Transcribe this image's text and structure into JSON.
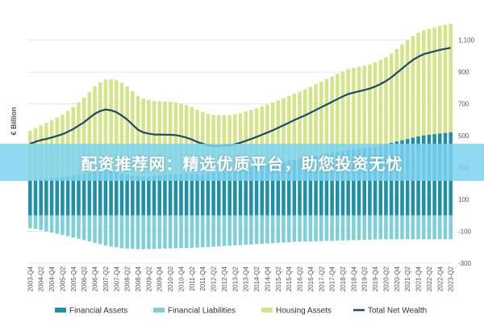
{
  "watermark": {
    "text": "配资推荐网：精选优质平台，助您投资无忧",
    "band_color": "#7dd3ee"
  },
  "colors": {
    "financial_assets": "#1f8fa6",
    "financial_liabilities": "#7fd0d6",
    "housing_assets": "#d4e48b",
    "total_net_wealth": "#1b4a6b",
    "grid": "#d9d9d9"
  },
  "chart_data": {
    "type": "bar",
    "ylabel": "€ Billion",
    "ylim": [
      -300,
      1200
    ],
    "yticks": [
      -300,
      -100,
      100,
      300,
      500,
      700,
      900,
      1100
    ],
    "ytick_labels": [
      "-300",
      "-100",
      "100",
      "300",
      "500",
      "700",
      "900",
      "1,100"
    ],
    "x_tick_labels": [
      "2003-Q4",
      "2004-Q2",
      "2004-Q4",
      "2005-Q2",
      "2005-Q4",
      "2006-Q2",
      "2006-Q4",
      "2007-Q2",
      "2007-Q4",
      "2008-Q2",
      "2008-Q4",
      "2009-Q2",
      "2009-Q4",
      "2010-Q2",
      "2010-Q4",
      "2011-Q2",
      "2011-Q4",
      "2012-Q2",
      "2012-Q4",
      "2013-Q2",
      "2013-Q4",
      "2014-Q2",
      "2014-Q4",
      "2015-Q2",
      "2015-Q4",
      "2016-Q2",
      "2016-Q4",
      "2017-Q2",
      "2017-Q4",
      "2018-Q2",
      "2018-Q4",
      "2019-Q2",
      "2019-Q4",
      "2020-Q2",
      "2020-Q4",
      "2021-Q2",
      "2021-Q4",
      "2022-Q2",
      "2022-Q4",
      "2023-Q2"
    ],
    "quarters": [
      "2003-Q4",
      "2004-Q1",
      "2004-Q2",
      "2004-Q3",
      "2004-Q4",
      "2005-Q1",
      "2005-Q2",
      "2005-Q3",
      "2005-Q4",
      "2006-Q1",
      "2006-Q2",
      "2006-Q3",
      "2006-Q4",
      "2007-Q1",
      "2007-Q2",
      "2007-Q3",
      "2007-Q4",
      "2008-Q1",
      "2008-Q2",
      "2008-Q3",
      "2008-Q4",
      "2009-Q1",
      "2009-Q2",
      "2009-Q3",
      "2009-Q4",
      "2010-Q1",
      "2010-Q2",
      "2010-Q3",
      "2010-Q4",
      "2011-Q1",
      "2011-Q2",
      "2011-Q3",
      "2011-Q4",
      "2012-Q1",
      "2012-Q2",
      "2012-Q3",
      "2012-Q4",
      "2013-Q1",
      "2013-Q2",
      "2013-Q3",
      "2013-Q4",
      "2014-Q1",
      "2014-Q2",
      "2014-Q3",
      "2014-Q4",
      "2015-Q1",
      "2015-Q2",
      "2015-Q3",
      "2015-Q4",
      "2016-Q1",
      "2016-Q2",
      "2016-Q3",
      "2016-Q4",
      "2017-Q1",
      "2017-Q2",
      "2017-Q3",
      "2017-Q4",
      "2018-Q1",
      "2018-Q2",
      "2018-Q3",
      "2018-Q4",
      "2019-Q1",
      "2019-Q2",
      "2019-Q3",
      "2019-Q4",
      "2020-Q1",
      "2020-Q2",
      "2020-Q3",
      "2020-Q4",
      "2021-Q1",
      "2021-Q2",
      "2021-Q3",
      "2021-Q4",
      "2022-Q1",
      "2022-Q2",
      "2022-Q3",
      "2022-Q4",
      "2023-Q1",
      "2023-Q2"
    ],
    "series": [
      {
        "name": "Financial Assets",
        "kind": "bar",
        "values": [
          220,
          222,
          225,
          228,
          232,
          236,
          240,
          245,
          250,
          255,
          260,
          265,
          270,
          275,
          278,
          275,
          270,
          262,
          255,
          250,
          245,
          243,
          245,
          248,
          252,
          255,
          258,
          260,
          262,
          262,
          260,
          258,
          260,
          263,
          266,
          270,
          275,
          280,
          285,
          290,
          296,
          302,
          308,
          314,
          320,
          326,
          332,
          338,
          344,
          350,
          356,
          362,
          368,
          374,
          380,
          386,
          392,
          398,
          404,
          410,
          414,
          418,
          422,
          426,
          432,
          440,
          448,
          456,
          464,
          472,
          480,
          488,
          496,
          502,
          506,
          510,
          514,
          518,
          522
        ]
      },
      {
        "name": "Financial Liabilities",
        "kind": "bar",
        "values": [
          -80,
          -85,
          -92,
          -100,
          -108,
          -115,
          -122,
          -130,
          -138,
          -146,
          -155,
          -163,
          -172,
          -180,
          -188,
          -195,
          -200,
          -205,
          -208,
          -210,
          -212,
          -212,
          -211,
          -210,
          -209,
          -208,
          -207,
          -206,
          -205,
          -204,
          -203,
          -202,
          -200,
          -198,
          -196,
          -194,
          -192,
          -190,
          -188,
          -186,
          -184,
          -182,
          -180,
          -178,
          -176,
          -174,
          -172,
          -170,
          -168,
          -166,
          -165,
          -164,
          -163,
          -162,
          -161,
          -160,
          -159,
          -158,
          -157,
          -156,
          -155,
          -154,
          -153,
          -152,
          -151,
          -150,
          -150,
          -150,
          -150,
          -150,
          -150,
          -150,
          -150,
          -150,
          -150,
          -150,
          -150,
          -150,
          -150
        ]
      },
      {
        "name": "Housing Assets",
        "kind": "bar",
        "values": [
          310,
          325,
          340,
          352,
          365,
          378,
          392,
          410,
          430,
          455,
          480,
          510,
          540,
          560,
          575,
          580,
          578,
          570,
          555,
          530,
          505,
          490,
          480,
          470,
          465,
          460,
          455,
          450,
          440,
          430,
          420,
          405,
          390,
          375,
          365,
          360,
          355,
          350,
          350,
          352,
          356,
          360,
          365,
          370,
          376,
          382,
          390,
          398,
          406,
          414,
          422,
          430,
          440,
          450,
          460,
          470,
          480,
          490,
          500,
          508,
          512,
          515,
          518,
          522,
          528,
          535,
          545,
          560,
          580,
          600,
          620,
          638,
          650,
          660,
          665,
          670,
          675,
          678,
          680
        ]
      },
      {
        "name": "Total Net Wealth",
        "kind": "line",
        "values": [
          450,
          462,
          473,
          480,
          489,
          499,
          510,
          525,
          542,
          564,
          585,
          612,
          638,
          655,
          665,
          660,
          648,
          627,
          602,
          570,
          538,
          521,
          514,
          508,
          508,
          507,
          506,
          504,
          497,
          488,
          477,
          461,
          450,
          440,
          435,
          436,
          438,
          440,
          447,
          456,
          468,
          480,
          493,
          506,
          520,
          534,
          550,
          566,
          582,
          598,
          613,
          628,
          645,
          662,
          679,
          696,
          713,
          730,
          747,
          762,
          771,
          779,
          787,
          796,
          809,
          825,
          843,
          866,
          894,
          922,
          950,
          976,
          996,
          1012,
          1021,
          1030,
          1039,
          1046,
          1052
        ]
      }
    ],
    "legend": {
      "position": "bottom",
      "items": [
        "Financial Assets",
        "Financial Liabilities",
        "Housing Assets",
        "Total Net Wealth"
      ]
    },
    "grid": true
  }
}
